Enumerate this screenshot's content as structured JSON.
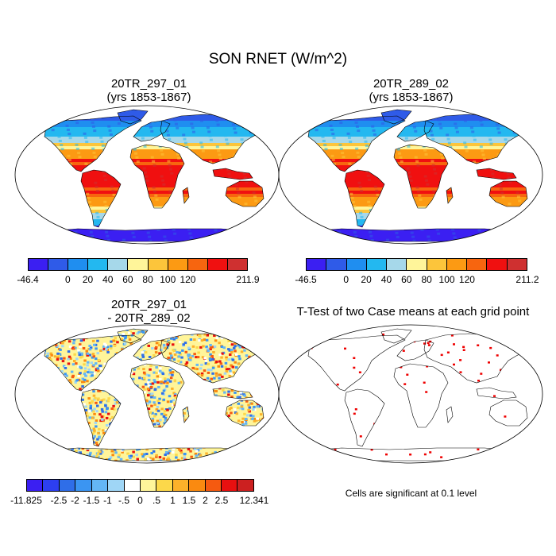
{
  "title": "SON RNET (W/m^2)",
  "panels": {
    "p1": {
      "title_line1": "20TR_297_01",
      "title_line2": "(yrs 1853-1867)"
    },
    "p2": {
      "title_line1": "20TR_289_02",
      "title_line2": "(yrs 1853-1867)"
    },
    "p3": {
      "title_line1": "20TR_297_01",
      "title_line2": "- 20TR_289_02"
    },
    "p4": {
      "title_line1": "T-Test of two Case means at each grid point",
      "note": "Cells are significant at 0.1 level"
    }
  },
  "colorbars": {
    "cb1": {
      "colors": [
        "#3b1ff2",
        "#2f5be8",
        "#1f8ef0",
        "#23b8f0",
        "#a6d8ea",
        "#fff59a",
        "#fcc53b",
        "#fc9a13",
        "#f7650f",
        "#f01010",
        "#cf3030"
      ],
      "labels": [
        "-46.4",
        "0",
        "20",
        "40",
        "60",
        "80",
        "100",
        "120",
        "211.9"
      ],
      "label_positions": [
        0,
        2,
        3,
        4,
        5,
        6,
        7,
        8,
        11
      ]
    },
    "cb2": {
      "colors": [
        "#3b1ff2",
        "#2f5be8",
        "#1f8ef0",
        "#23b8f0",
        "#a6d8ea",
        "#fff59a",
        "#fcc53b",
        "#fc9a13",
        "#f7650f",
        "#f01010",
        "#cf3030"
      ],
      "labels": [
        "-46.5",
        "0",
        "20",
        "40",
        "60",
        "80",
        "100",
        "120",
        "211.2"
      ],
      "label_positions": [
        0,
        2,
        3,
        4,
        5,
        6,
        7,
        8,
        11
      ]
    },
    "cb3": {
      "colors": [
        "#3b1ff2",
        "#2d3ff0",
        "#2f6ee8",
        "#3b95f2",
        "#64b6f5",
        "#9fd6f6",
        "#ffffff",
        "#fff59a",
        "#fcd84a",
        "#fcb12a",
        "#fa8a10",
        "#f55a10",
        "#e81010",
        "#cc2020"
      ],
      "labels": [
        "-11.825",
        "-2.5",
        "-2",
        "-1.5",
        "-1",
        "-.5",
        "0",
        ".5",
        "1",
        "1.5",
        "2",
        "2.5",
        "12.341"
      ],
      "label_positions": [
        0,
        2,
        3,
        4,
        5,
        6,
        7,
        8,
        9,
        10,
        11,
        12,
        14
      ]
    }
  }
}
